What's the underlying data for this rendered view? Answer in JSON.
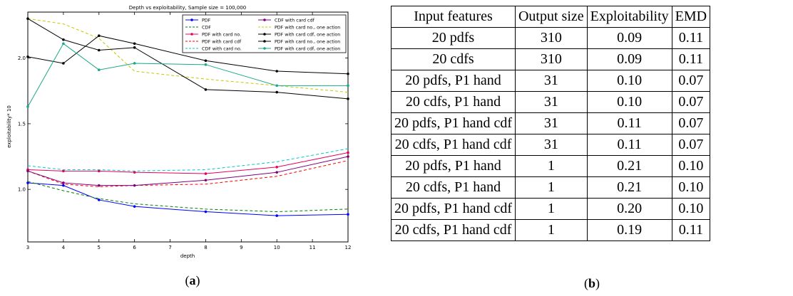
{
  "chart_data": {
    "type": "line",
    "title": "Depth vs exploitability, Sample size = 100,000",
    "xlabel": "depth",
    "ylabel": "exploitability* 10",
    "xlim": [
      3,
      12
    ],
    "ylim": [
      0.6,
      2.35
    ],
    "x_ticks": [
      3,
      4,
      5,
      6,
      7,
      8,
      9,
      10,
      11,
      12
    ],
    "y_ticks": [
      1.0,
      1.5,
      2.0
    ],
    "x_tick_labels": [
      "3",
      "4",
      "5",
      "6",
      "7",
      "8",
      "9",
      "10",
      "11",
      "12"
    ],
    "y_tick_labels": [
      "1.0",
      "1.5",
      "2.0"
    ],
    "grid": false,
    "legend_position": "top-right",
    "x": [
      3,
      4,
      5,
      6,
      8,
      10,
      12
    ],
    "series": [
      {
        "name": "PDF",
        "color": "#0000ff",
        "dash": "solid",
        "marker": true,
        "values": [
          1.05,
          1.03,
          0.92,
          0.87,
          0.83,
          0.8,
          0.81
        ]
      },
      {
        "name": "CDF",
        "color": "#008000",
        "dash": "dashed",
        "marker": false,
        "values": [
          1.06,
          0.99,
          0.93,
          0.89,
          0.85,
          0.83,
          0.85
        ]
      },
      {
        "name": "PDF with card no.",
        "color": "#e8005c",
        "dash": "solid",
        "marker": true,
        "values": [
          1.15,
          1.14,
          1.14,
          1.13,
          1.12,
          1.17,
          1.28
        ]
      },
      {
        "name": "PDF with card cdf",
        "color": "#ff0000",
        "dash": "dashed",
        "marker": false,
        "values": [
          1.14,
          1.04,
          1.02,
          1.03,
          1.04,
          1.1,
          1.22
        ]
      },
      {
        "name": "CDF with card no.",
        "color": "#00c8c8",
        "dash": "dashed",
        "marker": false,
        "values": [
          1.18,
          1.15,
          1.15,
          1.14,
          1.15,
          1.21,
          1.31
        ]
      },
      {
        "name": "CDF with card cdf",
        "color": "#7b0080",
        "dash": "solid",
        "marker": true,
        "values": [
          1.14,
          1.05,
          1.03,
          1.03,
          1.07,
          1.13,
          1.25
        ]
      },
      {
        "name": "PDF with card no., one action",
        "color": "#c8c800",
        "dash": "dashed",
        "marker": false,
        "values": [
          2.3,
          2.26,
          2.15,
          1.9,
          1.84,
          1.79,
          1.74
        ]
      },
      {
        "name": "PDF with card cdf, one action",
        "color": "#000000",
        "dash": "solid",
        "marker": true,
        "values": [
          2.3,
          2.14,
          2.06,
          2.08,
          1.76,
          1.74,
          1.69
        ]
      },
      {
        "name": "PDF with card no., one action",
        "color": "#000000",
        "dash": "solid",
        "marker": true,
        "values": [
          2.01,
          1.96,
          2.17,
          2.11,
          1.98,
          1.9,
          1.88
        ]
      },
      {
        "name": "PDF with card cdf, one action",
        "color": "#1aa88a",
        "dash": "solid",
        "marker": true,
        "values": [
          1.63,
          2.11,
          1.91,
          1.96,
          1.95,
          1.79,
          1.79
        ]
      }
    ]
  },
  "captions": {
    "a_letter": "a",
    "b_letter": "b"
  },
  "table": {
    "headers": [
      "Input features",
      "Output size",
      "Exploitability",
      "EMD"
    ],
    "rows": [
      [
        "20 pdfs",
        "310",
        "0.09",
        "0.11"
      ],
      [
        "20 cdfs",
        "310",
        "0.09",
        "0.11"
      ],
      [
        "20 pdfs, P1 hand",
        "31",
        "0.10",
        "0.07"
      ],
      [
        "20 cdfs, P1 hand",
        "31",
        "0.10",
        "0.07"
      ],
      [
        "20 pdfs, P1 hand cdf",
        "31",
        "0.11",
        "0.07"
      ],
      [
        "20 cdfs, P1 hand cdf",
        "31",
        "0.11",
        "0.07"
      ],
      [
        "20 pdfs, P1 hand",
        "1",
        "0.21",
        "0.10"
      ],
      [
        "20 cdfs, P1 hand",
        "1",
        "0.21",
        "0.10"
      ],
      [
        "20 pdfs, P1 hand cdf",
        "1",
        "0.20",
        "0.10"
      ],
      [
        "20 cdfs, P1 hand cdf",
        "1",
        "0.19",
        "0.11"
      ]
    ]
  }
}
